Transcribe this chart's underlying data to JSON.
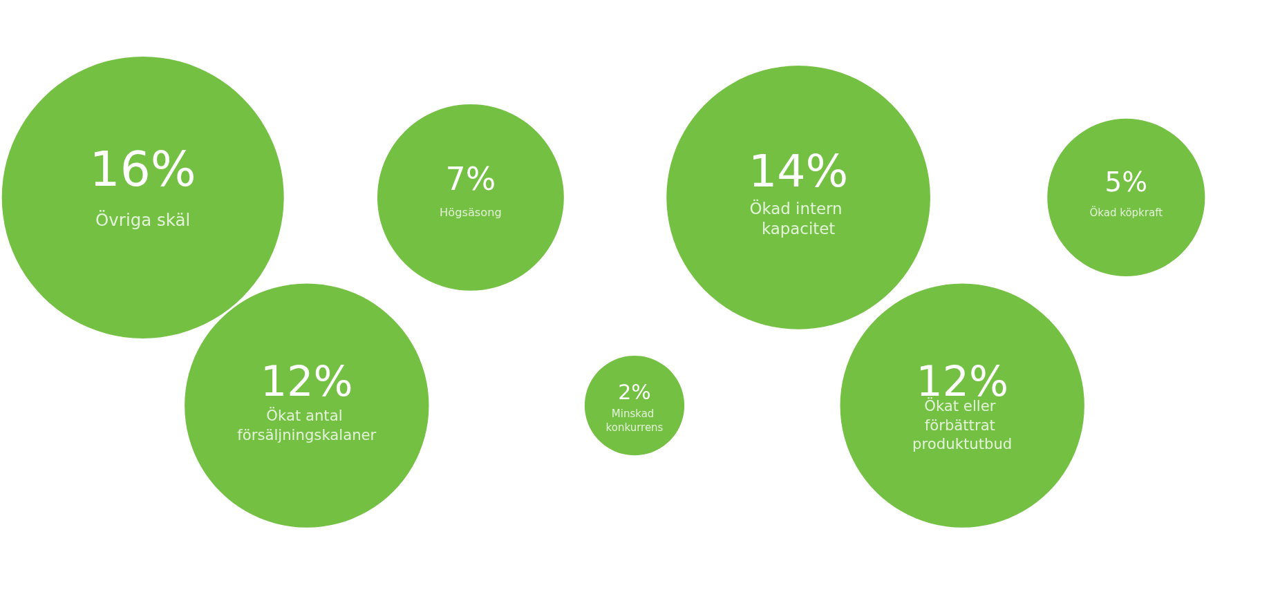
{
  "chart_data": {
    "type": "other",
    "categories": [
      "Övriga skäl",
      "Ökat antal försäljningskalaner",
      "Högsäsong",
      "Minskad konkurrens",
      "Ökad intern kapacitet",
      "Ökat eller förbättrat produktutbud",
      "Ökad köpkraft"
    ],
    "values": [
      16,
      12,
      7,
      2,
      14,
      12,
      5
    ],
    "value_labels": [
      "16%",
      "12%",
      "7%",
      "2%",
      "14%",
      "12%",
      "5%"
    ],
    "colors": [
      "#74c043",
      "#74c043",
      "#74c043",
      "#74c043",
      "#74c043",
      "#74c043",
      "#74c043"
    ]
  }
}
